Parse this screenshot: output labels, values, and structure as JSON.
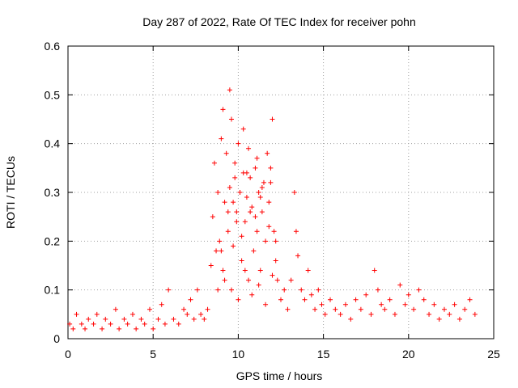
{
  "chart_data": {
    "type": "scatter",
    "title": "Day 287 of 2022, Rate Of TEC Index for receiver pohn",
    "xlabel": "GPS time / hours",
    "ylabel": "ROTI / TECUs",
    "xlim": [
      0,
      25
    ],
    "ylim": [
      0,
      0.6
    ],
    "xticks": [
      "0",
      "5",
      "10",
      "15",
      "20",
      "25"
    ],
    "yticks": [
      "0",
      "0.1",
      "0.2",
      "0.3",
      "0.4",
      "0.5",
      "0.6"
    ],
    "grid": true,
    "marker": "plus",
    "color": "#ff0000",
    "series": [
      {
        "x": [
          0.1,
          0.3,
          0.5,
          0.8,
          1.0,
          1.2,
          1.5,
          1.7,
          2.0,
          2.2,
          2.5,
          2.8,
          3.0,
          3.3,
          3.5,
          3.8,
          4.0,
          4.3,
          4.5,
          4.8,
          5.0,
          5.3,
          5.5,
          5.7,
          5.9,
          6.2,
          6.5,
          6.8,
          7.0,
          7.2,
          7.4,
          7.6,
          7.8,
          8.0,
          8.2,
          8.4,
          8.5,
          8.6,
          8.7,
          8.8,
          8.9,
          9.0,
          9.1,
          9.2,
          9.3,
          9.4,
          9.5,
          9.6,
          9.7,
          9.8,
          9.9,
          10.0,
          10.1,
          10.2,
          10.3,
          10.4,
          10.5,
          10.6,
          10.7,
          10.8,
          10.9,
          11.0,
          11.1,
          11.2,
          11.3,
          11.4,
          11.5,
          11.6,
          11.7,
          11.8,
          11.9,
          12.0,
          12.1,
          12.2,
          12.3,
          12.5,
          12.7,
          12.9,
          13.1,
          13.3,
          13.4,
          13.5,
          13.7,
          13.9,
          14.1,
          14.3,
          14.5,
          14.7,
          14.9,
          15.1,
          15.4,
          15.7,
          16.0,
          16.3,
          16.6,
          16.9,
          17.2,
          17.5,
          17.8,
          18.0,
          18.2,
          18.4,
          18.6,
          18.9,
          19.2,
          19.5,
          19.8,
          20.0,
          20.3,
          20.6,
          20.9,
          21.2,
          21.5,
          21.8,
          22.1,
          22.4,
          22.7,
          23.0,
          23.3,
          23.6,
          23.9,
          9.0,
          9.4,
          9.8,
          10.2,
          10.6,
          11.0,
          11.4,
          11.8,
          9.2,
          9.6,
          10.0,
          10.4,
          10.8,
          11.2,
          11.6,
          12.0,
          9.5,
          10.3,
          11.1,
          12.2,
          8.8,
          9.1,
          9.7,
          10.5,
          11.3,
          11.9,
          9.9,
          10.7
        ],
        "y": [
          0.03,
          0.02,
          0.05,
          0.03,
          0.02,
          0.04,
          0.03,
          0.05,
          0.02,
          0.04,
          0.03,
          0.06,
          0.02,
          0.04,
          0.03,
          0.05,
          0.02,
          0.04,
          0.03,
          0.06,
          0.02,
          0.04,
          0.07,
          0.03,
          0.1,
          0.04,
          0.03,
          0.06,
          0.05,
          0.08,
          0.04,
          0.1,
          0.05,
          0.04,
          0.06,
          0.15,
          0.25,
          0.36,
          0.18,
          0.3,
          0.2,
          0.41,
          0.14,
          0.28,
          0.38,
          0.22,
          0.31,
          0.45,
          0.19,
          0.36,
          0.26,
          0.4,
          0.3,
          0.16,
          0.34,
          0.24,
          0.29,
          0.12,
          0.33,
          0.27,
          0.18,
          0.35,
          0.22,
          0.3,
          0.14,
          0.26,
          0.32,
          0.2,
          0.38,
          0.28,
          0.35,
          0.45,
          0.22,
          0.16,
          0.12,
          0.08,
          0.1,
          0.06,
          0.12,
          0.3,
          0.22,
          0.17,
          0.1,
          0.08,
          0.14,
          0.09,
          0.06,
          0.1,
          0.07,
          0.05,
          0.08,
          0.06,
          0.05,
          0.07,
          0.04,
          0.08,
          0.06,
          0.09,
          0.05,
          0.14,
          0.1,
          0.07,
          0.06,
          0.08,
          0.05,
          0.11,
          0.07,
          0.09,
          0.06,
          0.1,
          0.08,
          0.05,
          0.07,
          0.04,
          0.06,
          0.05,
          0.07,
          0.04,
          0.06,
          0.08,
          0.05,
          0.18,
          0.26,
          0.33,
          0.21,
          0.39,
          0.25,
          0.31,
          0.23,
          0.12,
          0.1,
          0.08,
          0.14,
          0.09,
          0.11,
          0.07,
          0.13,
          0.51,
          0.43,
          0.37,
          0.2,
          0.1,
          0.47,
          0.28,
          0.34,
          0.29,
          0.32,
          0.24,
          0.26
        ]
      }
    ]
  }
}
